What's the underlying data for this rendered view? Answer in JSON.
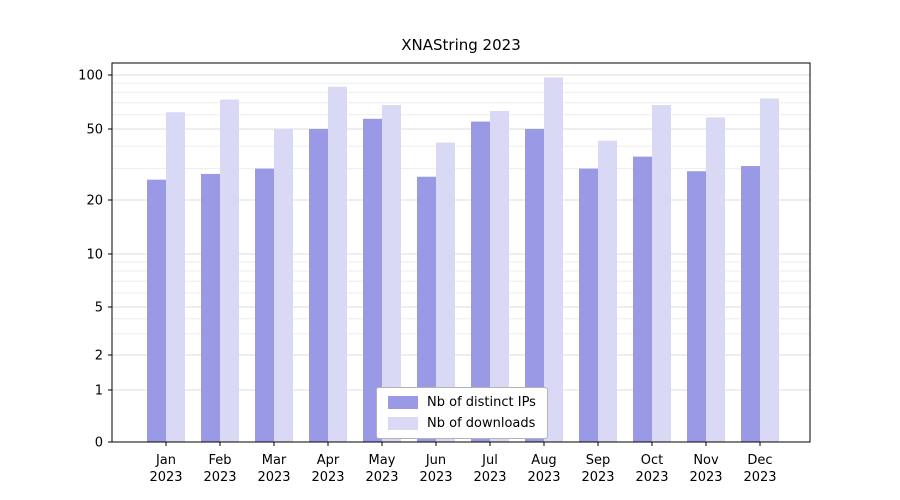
{
  "chart_data": {
    "type": "bar",
    "title": "XNAString 2023",
    "categories": [
      "Jan\n2023",
      "Feb\n2023",
      "Mar\n2023",
      "Apr\n2023",
      "May\n2023",
      "Jun\n2023",
      "Jul\n2023",
      "Aug\n2023",
      "Sep\n2023",
      "Oct\n2023",
      "Nov\n2023",
      "Dec\n2023"
    ],
    "series": [
      {
        "name": "Nb of distinct IPs",
        "color": "#9999e6",
        "values": [
          26,
          28,
          30,
          50,
          57,
          27,
          55,
          50,
          30,
          35,
          29,
          31
        ]
      },
      {
        "name": "Nb of downloads",
        "color": "#d9d9f6",
        "values": [
          62,
          73,
          50,
          86,
          68,
          42,
          63,
          97,
          43,
          68,
          58,
          74
        ]
      }
    ],
    "xlabel": "",
    "ylabel": "",
    "yscale": "log",
    "ylim": [
      0,
      110
    ],
    "yticks": [
      100,
      50,
      20,
      10,
      5,
      2,
      1,
      0
    ],
    "yticks_minor": [
      3,
      4,
      6,
      7,
      8,
      9,
      30,
      40,
      60,
      70,
      80,
      90
    ],
    "grid": true,
    "legend_position": "lower center",
    "colors": {
      "major_grid": "#dcdcdc",
      "minor_grid": "#ededed",
      "axis": "#000000"
    }
  }
}
